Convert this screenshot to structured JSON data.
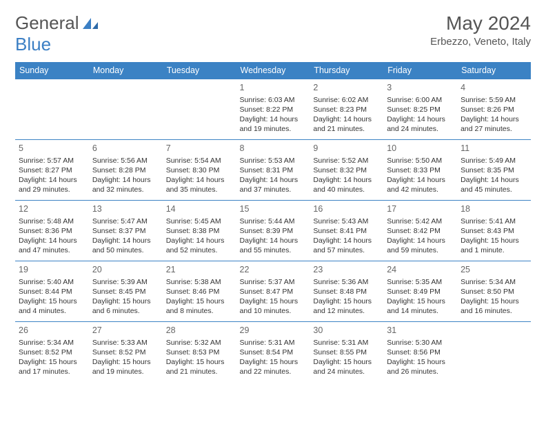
{
  "brand": {
    "part1": "General",
    "part2": "Blue"
  },
  "title": "May 2024",
  "location": "Erbezzo, Veneto, Italy",
  "header_bg": "#3b82c4",
  "day_headers": [
    "Sunday",
    "Monday",
    "Tuesday",
    "Wednesday",
    "Thursday",
    "Friday",
    "Saturday"
  ],
  "weeks": [
    [
      null,
      null,
      null,
      {
        "n": "1",
        "sr": "6:03 AM",
        "ss": "8:22 PM",
        "dl": "14 hours and 19 minutes."
      },
      {
        "n": "2",
        "sr": "6:02 AM",
        "ss": "8:23 PM",
        "dl": "14 hours and 21 minutes."
      },
      {
        "n": "3",
        "sr": "6:00 AM",
        "ss": "8:25 PM",
        "dl": "14 hours and 24 minutes."
      },
      {
        "n": "4",
        "sr": "5:59 AM",
        "ss": "8:26 PM",
        "dl": "14 hours and 27 minutes."
      }
    ],
    [
      {
        "n": "5",
        "sr": "5:57 AM",
        "ss": "8:27 PM",
        "dl": "14 hours and 29 minutes."
      },
      {
        "n": "6",
        "sr": "5:56 AM",
        "ss": "8:28 PM",
        "dl": "14 hours and 32 minutes."
      },
      {
        "n": "7",
        "sr": "5:54 AM",
        "ss": "8:30 PM",
        "dl": "14 hours and 35 minutes."
      },
      {
        "n": "8",
        "sr": "5:53 AM",
        "ss": "8:31 PM",
        "dl": "14 hours and 37 minutes."
      },
      {
        "n": "9",
        "sr": "5:52 AM",
        "ss": "8:32 PM",
        "dl": "14 hours and 40 minutes."
      },
      {
        "n": "10",
        "sr": "5:50 AM",
        "ss": "8:33 PM",
        "dl": "14 hours and 42 minutes."
      },
      {
        "n": "11",
        "sr": "5:49 AM",
        "ss": "8:35 PM",
        "dl": "14 hours and 45 minutes."
      }
    ],
    [
      {
        "n": "12",
        "sr": "5:48 AM",
        "ss": "8:36 PM",
        "dl": "14 hours and 47 minutes."
      },
      {
        "n": "13",
        "sr": "5:47 AM",
        "ss": "8:37 PM",
        "dl": "14 hours and 50 minutes."
      },
      {
        "n": "14",
        "sr": "5:45 AM",
        "ss": "8:38 PM",
        "dl": "14 hours and 52 minutes."
      },
      {
        "n": "15",
        "sr": "5:44 AM",
        "ss": "8:39 PM",
        "dl": "14 hours and 55 minutes."
      },
      {
        "n": "16",
        "sr": "5:43 AM",
        "ss": "8:41 PM",
        "dl": "14 hours and 57 minutes."
      },
      {
        "n": "17",
        "sr": "5:42 AM",
        "ss": "8:42 PM",
        "dl": "14 hours and 59 minutes."
      },
      {
        "n": "18",
        "sr": "5:41 AM",
        "ss": "8:43 PM",
        "dl": "15 hours and 1 minute."
      }
    ],
    [
      {
        "n": "19",
        "sr": "5:40 AM",
        "ss": "8:44 PM",
        "dl": "15 hours and 4 minutes."
      },
      {
        "n": "20",
        "sr": "5:39 AM",
        "ss": "8:45 PM",
        "dl": "15 hours and 6 minutes."
      },
      {
        "n": "21",
        "sr": "5:38 AM",
        "ss": "8:46 PM",
        "dl": "15 hours and 8 minutes."
      },
      {
        "n": "22",
        "sr": "5:37 AM",
        "ss": "8:47 PM",
        "dl": "15 hours and 10 minutes."
      },
      {
        "n": "23",
        "sr": "5:36 AM",
        "ss": "8:48 PM",
        "dl": "15 hours and 12 minutes."
      },
      {
        "n": "24",
        "sr": "5:35 AM",
        "ss": "8:49 PM",
        "dl": "15 hours and 14 minutes."
      },
      {
        "n": "25",
        "sr": "5:34 AM",
        "ss": "8:50 PM",
        "dl": "15 hours and 16 minutes."
      }
    ],
    [
      {
        "n": "26",
        "sr": "5:34 AM",
        "ss": "8:52 PM",
        "dl": "15 hours and 17 minutes."
      },
      {
        "n": "27",
        "sr": "5:33 AM",
        "ss": "8:52 PM",
        "dl": "15 hours and 19 minutes."
      },
      {
        "n": "28",
        "sr": "5:32 AM",
        "ss": "8:53 PM",
        "dl": "15 hours and 21 minutes."
      },
      {
        "n": "29",
        "sr": "5:31 AM",
        "ss": "8:54 PM",
        "dl": "15 hours and 22 minutes."
      },
      {
        "n": "30",
        "sr": "5:31 AM",
        "ss": "8:55 PM",
        "dl": "15 hours and 24 minutes."
      },
      {
        "n": "31",
        "sr": "5:30 AM",
        "ss": "8:56 PM",
        "dl": "15 hours and 26 minutes."
      },
      null
    ]
  ],
  "labels": {
    "sunrise": "Sunrise:",
    "sunset": "Sunset:",
    "daylight": "Daylight:"
  }
}
